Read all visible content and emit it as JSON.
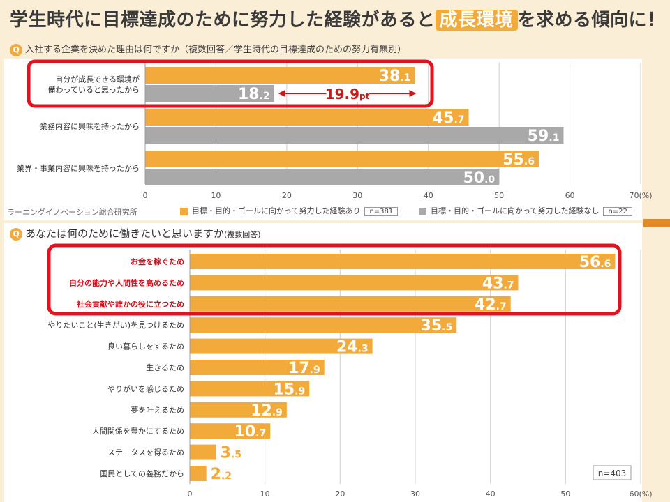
{
  "header": {
    "title_pre": "学生時代に目標達成のために努力した経験があると",
    "title_hl": "成長環境",
    "title_post": "を求める傾向に！"
  },
  "colors": {
    "accent": "#f2ab3a",
    "gray": "#a9a9a9",
    "red": "#e8101e",
    "bg": "#fbeed6"
  },
  "chart_data": [
    {
      "type": "bar",
      "title": "入社する企業を決めた理由は何ですか（複数回答／学生時代の目標達成のための努力有無別）",
      "orientation": "horizontal",
      "categories": [
        [
          "自分が成長できる環境が",
          "備わっていると思ったから"
        ],
        [
          "業務内容に興味を持ったから"
        ],
        [
          "業界・事業内容に興味を持ったから"
        ]
      ],
      "series": [
        {
          "name": "目標・目的・ゴールに向かって努力した経験あり",
          "n": "n=381",
          "values": [
            38.1,
            45.7,
            55.6
          ]
        },
        {
          "name": "目標・目的・ゴールに向かって努力した経験なし",
          "n": "n=22",
          "values": [
            18.2,
            59.1,
            50.0
          ]
        }
      ],
      "value_labels": [
        [
          "38.1",
          "45.7",
          "55.6"
        ],
        [
          "18.2",
          "59.1",
          "50.0"
        ]
      ],
      "xlim": [
        0,
        70
      ],
      "xticks": [
        "0",
        "10",
        "20",
        "30",
        "40",
        "50",
        "60",
        "70"
      ],
      "unit": "(%)",
      "annotation": {
        "text": "19.9pt",
        "from": 18.2,
        "to": 38.1
      },
      "credit": "ラーニングイノベーション総合研究所",
      "highlight_rows": [
        0
      ]
    },
    {
      "type": "bar",
      "title": "あなたは何のために働きたいと思いますか",
      "title_note": "(複数回答)",
      "orientation": "horizontal",
      "categories": [
        "お金を稼ぐため",
        "自分の能力や人間性を高めるため",
        "社会貢献や誰かの役に立つため",
        "やりたいこと(生きがい)を見つけるため",
        "良い暮らしをするため",
        "生きるため",
        "やりがいを感じるため",
        "夢を叶えるため",
        "人間関係を豊かにするため",
        "ステータスを得るため",
        "国民としての義務だから"
      ],
      "values": [
        56.6,
        43.7,
        42.7,
        35.5,
        24.3,
        17.9,
        15.9,
        12.9,
        10.7,
        3.5,
        2.2
      ],
      "value_labels": [
        "56.6",
        "43.7",
        "42.7",
        "35.5",
        "24.3",
        "17.9",
        "15.9",
        "12.9",
        "10.7",
        "3.5",
        "2.2"
      ],
      "xlim": [
        0,
        60
      ],
      "xticks": [
        "0",
        "10",
        "20",
        "30",
        "40",
        "50",
        "60"
      ],
      "unit": "(%)",
      "n": "n=403",
      "highlight_rows": [
        0,
        1,
        2
      ]
    }
  ]
}
